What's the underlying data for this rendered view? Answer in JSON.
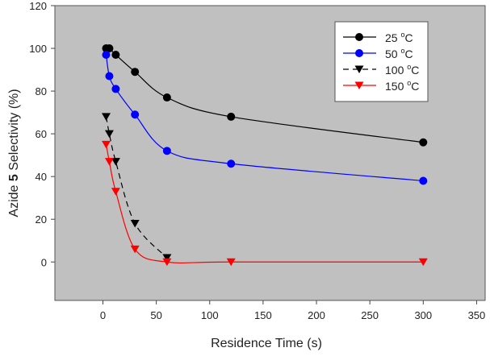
{
  "chart_data": {
    "type": "line",
    "title": "",
    "xlabel": "Residence Time (s)",
    "ylabel_parts": [
      "Azide ",
      "5",
      " Selectivity (%)"
    ],
    "xlim": [
      -45,
      358
    ],
    "ylim": [
      -18,
      120
    ],
    "xticks": [
      0,
      50,
      100,
      150,
      200,
      250,
      300,
      350
    ],
    "yticks": [
      0,
      20,
      40,
      60,
      80,
      100,
      120
    ],
    "legend_position": "top-right",
    "background": "#c0c0c0",
    "series": [
      {
        "name": "25 °C",
        "label": "25",
        "unit": "°C",
        "color": "#000000",
        "marker": "circle",
        "dash": false,
        "x": [
          3,
          6,
          12,
          30,
          60,
          120,
          300
        ],
        "y": [
          100,
          100,
          97,
          89,
          77,
          68,
          56
        ]
      },
      {
        "name": "50 °C",
        "label": "50",
        "unit": "°C",
        "color": "#0000ff",
        "marker": "circle",
        "dash": false,
        "x": [
          3,
          6,
          12,
          30,
          60,
          120,
          300
        ],
        "y": [
          97,
          87,
          81,
          69,
          52,
          46,
          38
        ]
      },
      {
        "name": "100 °C",
        "label": "100",
        "unit": "°C",
        "color": "#000000",
        "marker": "triangle-down",
        "dash": true,
        "x": [
          3,
          6,
          12,
          30,
          60
        ],
        "y": [
          68,
          60,
          47,
          18,
          2
        ]
      },
      {
        "name": "150 °C",
        "label": "150",
        "unit": "°C",
        "color": "#ff0000",
        "marker": "triangle-down",
        "dash": false,
        "x": [
          3,
          6,
          12,
          30,
          60,
          120,
          300
        ],
        "y": [
          55,
          47,
          33,
          6,
          0,
          0,
          0
        ]
      }
    ]
  }
}
